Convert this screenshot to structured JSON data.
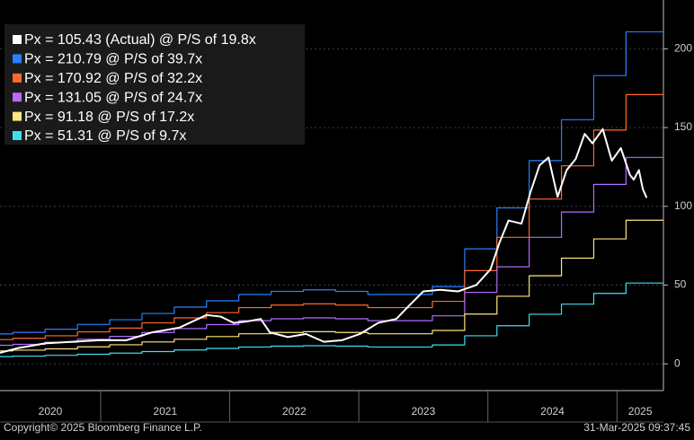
{
  "chart_data": {
    "type": "line",
    "xlim": [
      2020.22,
      2025.36
    ],
    "ylim": [
      -17,
      231
    ],
    "yticks": [
      0,
      50,
      100,
      150,
      200
    ],
    "xticks": [
      {
        "value": 2020,
        "label": "2020"
      },
      {
        "value": 2021,
        "label": "2021"
      },
      {
        "value": 2022,
        "label": "2022"
      },
      {
        "value": 2023,
        "label": "2023"
      },
      {
        "value": 2024,
        "label": "2024"
      },
      {
        "value": 2025,
        "label": "2025"
      }
    ],
    "grid": true,
    "legend": "top-left",
    "series": [
      {
        "name": "Px = 105.43 (Actual) @ P/S of 19.8x",
        "color": "#ffffff",
        "step": false,
        "x": [
          2020.22,
          2020.36,
          2020.57,
          2020.78,
          2020.99,
          2021.2,
          2021.4,
          2021.61,
          2021.82,
          2021.93,
          2022.03,
          2022.14,
          2022.24,
          2022.31,
          2022.45,
          2022.59,
          2022.73,
          2022.87,
          2023.01,
          2023.15,
          2023.29,
          2023.39,
          2023.5,
          2023.63,
          2023.77,
          2023.91,
          2024.02,
          2024.09,
          2024.16,
          2024.26,
          2024.33,
          2024.4,
          2024.47,
          2024.54,
          2024.61,
          2024.68,
          2024.75,
          2024.81,
          2024.89,
          2024.96,
          2025.03,
          2025.1,
          2025.13,
          2025.17,
          2025.2,
          2025.23
        ],
        "values": [
          7,
          10,
          13,
          14,
          15,
          15,
          20,
          23,
          31,
          30,
          26,
          27,
          28.5,
          20,
          17,
          19,
          14,
          15,
          19,
          26,
          28.5,
          37,
          46,
          47,
          46,
          50,
          60,
          77,
          91,
          89,
          109,
          126,
          131,
          106,
          123,
          130,
          146,
          140,
          149,
          129,
          137,
          120,
          117,
          123,
          111,
          105.43
        ]
      },
      {
        "name": "Px = 210.79 @ P/S of 39.7x",
        "color": "#2a7fff",
        "step": true,
        "x": [
          2020.22,
          2020.32,
          2020.57,
          2020.82,
          2021.07,
          2021.32,
          2021.57,
          2021.82,
          2022.07,
          2022.32,
          2022.57,
          2022.82,
          2023.07,
          2023.32,
          2023.57,
          2023.82,
          2024.07,
          2024.32,
          2024.57,
          2024.82,
          2025.07,
          2025.36
        ],
        "values": [
          19,
          20,
          22,
          25,
          28,
          32,
          36,
          40,
          44,
          46,
          47,
          46,
          44,
          44,
          49,
          73,
          99,
          129,
          155,
          183,
          210.79,
          210.79
        ]
      },
      {
        "name": "Px = 170.92 @ P/S of 32.2x",
        "color": "#ff6a2b",
        "step": true,
        "x": [
          2020.22,
          2020.32,
          2020.57,
          2020.82,
          2021.07,
          2021.32,
          2021.57,
          2021.82,
          2022.07,
          2022.32,
          2022.57,
          2022.82,
          2023.07,
          2023.32,
          2023.57,
          2023.82,
          2024.07,
          2024.32,
          2024.57,
          2024.82,
          2025.07,
          2025.36
        ],
        "values": [
          15.4,
          16.2,
          17.8,
          20.3,
          22.7,
          26.0,
          29.2,
          32.5,
          35.7,
          37.3,
          38.1,
          37.3,
          35.7,
          35.7,
          39.7,
          59.2,
          80.3,
          104.6,
          125.7,
          148.4,
          170.92,
          170.92
        ]
      },
      {
        "name": "Px = 131.05 @ P/S of 24.7x",
        "color": "#b46cff",
        "step": true,
        "x": [
          2020.22,
          2020.32,
          2020.57,
          2020.82,
          2021.07,
          2021.32,
          2021.57,
          2021.82,
          2022.07,
          2022.32,
          2022.57,
          2022.82,
          2023.07,
          2023.32,
          2023.57,
          2023.82,
          2024.07,
          2024.32,
          2024.57,
          2024.82,
          2025.07,
          2025.36
        ],
        "values": [
          11.8,
          12.4,
          13.7,
          15.6,
          17.4,
          19.9,
          22.4,
          24.9,
          27.4,
          28.6,
          29.2,
          28.6,
          27.4,
          27.4,
          30.5,
          45.4,
          61.6,
          80.3,
          96.4,
          113.9,
          131.05,
          131.05
        ]
      },
      {
        "name": "Px = 91.18 @ P/S of 17.2x",
        "color": "#ffe680",
        "step": true,
        "x": [
          2020.22,
          2020.32,
          2020.57,
          2020.82,
          2021.07,
          2021.32,
          2021.57,
          2021.82,
          2022.07,
          2022.32,
          2022.57,
          2022.82,
          2023.07,
          2023.32,
          2023.57,
          2023.82,
          2024.07,
          2024.32,
          2024.57,
          2024.82,
          2025.07,
          2025.36
        ],
        "values": [
          8.2,
          8.7,
          9.5,
          10.8,
          12.1,
          13.9,
          15.6,
          17.3,
          19.1,
          19.9,
          20.4,
          19.9,
          19.1,
          19.1,
          21.2,
          31.6,
          42.9,
          55.9,
          67.1,
          79.3,
          91.18,
          91.18
        ]
      },
      {
        "name": "Px = 51.31 @ P/S of 9.7x",
        "color": "#3ee0f0",
        "step": true,
        "x": [
          2020.22,
          2020.32,
          2020.57,
          2020.82,
          2021.07,
          2021.32,
          2021.57,
          2021.82,
          2022.07,
          2022.32,
          2022.57,
          2022.82,
          2023.07,
          2023.32,
          2023.57,
          2023.82,
          2024.07,
          2024.32,
          2024.57,
          2024.82,
          2025.07,
          2025.36
        ],
        "values": [
          4.6,
          4.9,
          5.4,
          6.1,
          6.8,
          7.8,
          8.8,
          9.8,
          10.7,
          11.2,
          11.5,
          11.2,
          10.7,
          10.7,
          12.0,
          17.8,
          24.2,
          31.5,
          37.9,
          44.7,
          51.31,
          51.31
        ]
      }
    ],
    "footer_left": "Copyright© 2025 Bloomberg Finance L.P.",
    "footer_right": "31-Mar-2025 09:37:45"
  }
}
